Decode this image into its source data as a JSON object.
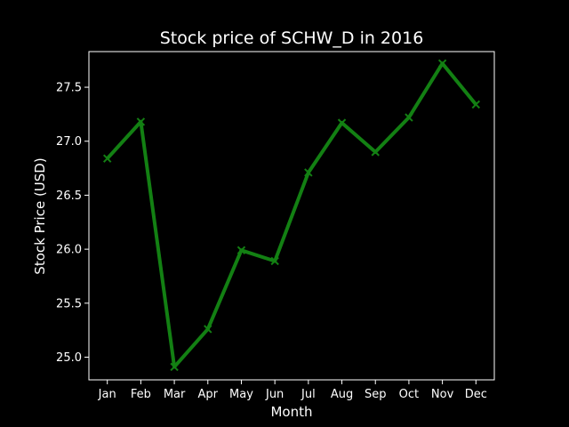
{
  "chart_data": {
    "type": "line",
    "title": "Stock price of SCHW_D in 2016",
    "xlabel": "Month",
    "ylabel": "Stock Price (USD)",
    "categories": [
      "Jan",
      "Feb",
      "Mar",
      "Apr",
      "May",
      "Jun",
      "Jul",
      "Aug",
      "Sep",
      "Oct",
      "Nov",
      "Dec"
    ],
    "values": [
      26.84,
      27.18,
      24.91,
      25.26,
      25.99,
      25.89,
      26.71,
      27.17,
      26.9,
      27.22,
      27.72,
      27.34
    ],
    "ylim": [
      24.79,
      27.83
    ],
    "yticks": [
      25.0,
      25.5,
      26.0,
      26.5,
      27.0,
      27.5
    ],
    "ytick_labels": [
      "25.0",
      "25.5",
      "26.0",
      "26.5",
      "27.0",
      "27.5"
    ],
    "marker": "x",
    "grid": false,
    "colors": {
      "background": "#000000",
      "axes": "#ffffff",
      "text": "#ffffff",
      "line": "#138013"
    }
  }
}
